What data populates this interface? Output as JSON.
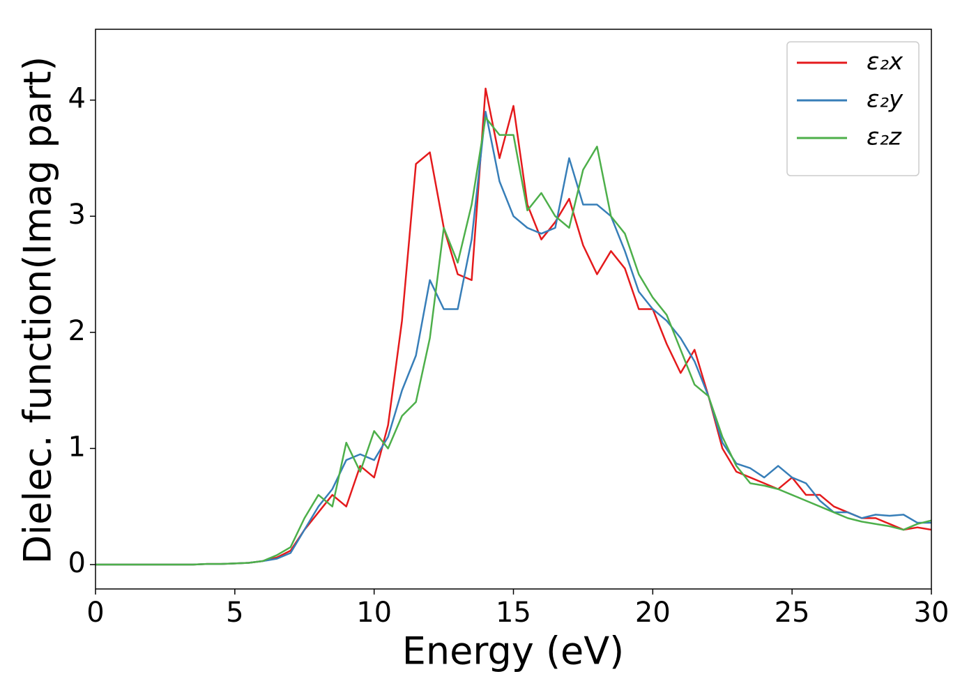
{
  "chart_data": {
    "type": "line",
    "xlabel": "Energy (eV)",
    "ylabel": "Dielec. function(Imag part)",
    "x": [
      0,
      0.5,
      1,
      1.5,
      2,
      2.5,
      3,
      3.5,
      4,
      4.5,
      5,
      5.5,
      6,
      6.5,
      7,
      7.5,
      8,
      8.5,
      9,
      9.5,
      10,
      10.5,
      11,
      11.5,
      12,
      12.5,
      13,
      13.5,
      14,
      14.5,
      15,
      15.5,
      16,
      16.5,
      17,
      17.5,
      18,
      18.5,
      19,
      19.5,
      20,
      20.5,
      21,
      21.5,
      22,
      22.5,
      23,
      23.5,
      24,
      24.5,
      25,
      25.5,
      26,
      26.5,
      27,
      27.5,
      28,
      28.5,
      29,
      29.5,
      30
    ],
    "series": [
      {
        "name": "ε₂x",
        "color": "#e41a1c",
        "values": [
          0,
          0,
          0,
          0,
          0,
          0,
          0,
          0,
          0.005,
          0.005,
          0.01,
          0.015,
          0.03,
          0.06,
          0.12,
          0.3,
          0.45,
          0.6,
          0.5,
          0.85,
          0.75,
          1.2,
          2.1,
          3.45,
          3.55,
          2.9,
          2.5,
          2.45,
          4.1,
          3.5,
          3.95,
          3.1,
          2.8,
          2.95,
          3.15,
          2.75,
          2.5,
          2.7,
          2.55,
          2.2,
          2.2,
          1.9,
          1.65,
          1.85,
          1.45,
          1.0,
          0.8,
          0.75,
          0.7,
          0.65,
          0.75,
          0.6,
          0.6,
          0.5,
          0.45,
          0.4,
          0.4,
          0.35,
          0.3,
          0.32,
          0.3
        ]
      },
      {
        "name": "ε₂y",
        "color": "#377eb8",
        "values": [
          0,
          0,
          0,
          0,
          0,
          0,
          0,
          0,
          0.005,
          0.005,
          0.01,
          0.015,
          0.03,
          0.05,
          0.1,
          0.3,
          0.5,
          0.65,
          0.9,
          0.95,
          0.9,
          1.1,
          1.5,
          1.8,
          2.45,
          2.2,
          2.2,
          2.8,
          3.9,
          3.3,
          3.0,
          2.9,
          2.85,
          2.9,
          3.5,
          3.1,
          3.1,
          3.0,
          2.7,
          2.35,
          2.2,
          2.1,
          1.95,
          1.75,
          1.45,
          1.05,
          0.87,
          0.83,
          0.75,
          0.85,
          0.75,
          0.7,
          0.55,
          0.45,
          0.45,
          0.4,
          0.43,
          0.42,
          0.43,
          0.36,
          0.36
        ]
      },
      {
        "name": "ε₂z",
        "color": "#4daf4a",
        "values": [
          0,
          0,
          0,
          0,
          0,
          0,
          0,
          0,
          0.005,
          0.005,
          0.01,
          0.015,
          0.03,
          0.08,
          0.15,
          0.4,
          0.6,
          0.5,
          1.05,
          0.8,
          1.15,
          1.0,
          1.28,
          1.4,
          1.95,
          2.9,
          2.6,
          3.1,
          3.85,
          3.7,
          3.7,
          3.05,
          3.2,
          3.0,
          2.9,
          3.4,
          3.6,
          3.0,
          2.85,
          2.5,
          2.3,
          2.15,
          1.85,
          1.55,
          1.45,
          1.1,
          0.85,
          0.7,
          0.68,
          0.65,
          0.6,
          0.55,
          0.5,
          0.45,
          0.4,
          0.37,
          0.35,
          0.33,
          0.3,
          0.35,
          0.38
        ]
      }
    ],
    "xlim": [
      0,
      30
    ],
    "xticks": [
      0,
      5,
      10,
      15,
      20,
      25,
      30
    ],
    "ylim": [
      -0.21,
      4.61
    ],
    "yticks": [
      0,
      1,
      2,
      3,
      4
    ],
    "legend": "upper right"
  }
}
